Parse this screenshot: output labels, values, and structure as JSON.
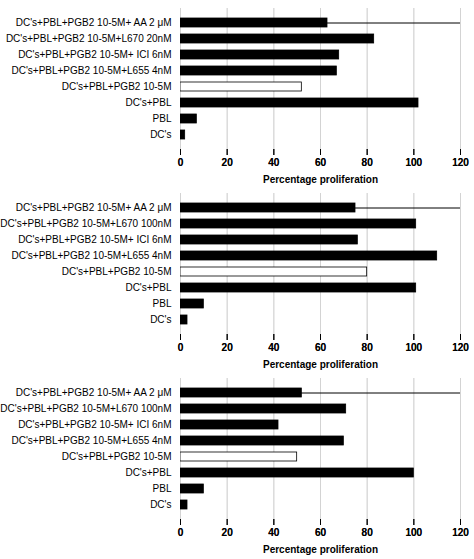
{
  "chart_data": [
    {
      "type": "bar",
      "orientation": "horizontal",
      "categories": [
        "DC's+PBL+PGB2 10-5M+ AA 2 μM",
        "DC's+PBL+PGB2 10-5M+L670 20nM",
        "DC's+PBL+PGB2 10-5M+ ICI 6nM",
        "DC's+PBL+PGB2 10-5M+L655 4nM",
        "DC's+PBL+PGB2 10-5M",
        "DC's+PBL",
        "PBL",
        "DC's"
      ],
      "values": [
        63,
        83,
        68,
        67,
        52,
        102,
        7,
        2
      ],
      "colors": [
        "black",
        "black",
        "black",
        "black",
        "white",
        "black",
        "black",
        "black"
      ],
      "xlabel": "Percentage proliferation",
      "xlim": [
        0,
        120
      ],
      "xticks": [
        0,
        20,
        40,
        60,
        80,
        100,
        120
      ],
      "grid": true
    },
    {
      "type": "bar",
      "orientation": "horizontal",
      "categories": [
        "DC's+PBL+PGB2 10-5M+ AA 2 μM",
        "DC's+PBL+PGB2 10-5M+L670 100nM",
        "DC's+PBL+PGB2 10-5M+ ICI 6nM",
        "DC's+PBL+PGB2 10-5M+L655 4nM",
        "DC's+PBL+PGB2 10-5M",
        "DC's+PBL",
        "PBL",
        "DC's"
      ],
      "values": [
        75,
        101,
        76,
        110,
        80,
        101,
        10,
        3
      ],
      "colors": [
        "black",
        "black",
        "black",
        "black",
        "white",
        "black",
        "black",
        "black"
      ],
      "xlabel": "Percentage proliferation",
      "xlim": [
        0,
        120
      ],
      "xticks": [
        0,
        20,
        40,
        60,
        80,
        100,
        120
      ],
      "grid": true
    },
    {
      "type": "bar",
      "orientation": "horizontal",
      "categories": [
        "DC's+PBL+PGB2 10-5M+ AA 2 μM",
        "DC's+PBL+PGB2 10-5M+L670 100nM",
        "DC's+PBL+PGB2 10-5M+ ICI 6nM",
        "DC's+PBL+PGB2 10-5M+L655 4nM",
        "DC's+PBL+PGB2 10-5M",
        "DC's+PBL",
        "PBL",
        "DC's"
      ],
      "values": [
        52,
        71,
        42,
        70,
        50,
        100,
        10,
        3
      ],
      "colors": [
        "black",
        "black",
        "black",
        "black",
        "white",
        "black",
        "black",
        "black"
      ],
      "xlabel": "Percentage proliferation",
      "xlim": [
        0,
        120
      ],
      "xticks": [
        0,
        20,
        40,
        60,
        80,
        100,
        120
      ],
      "grid": true
    }
  ]
}
